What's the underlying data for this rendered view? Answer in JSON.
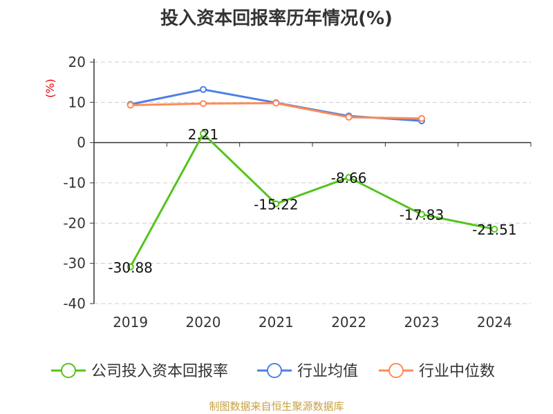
{
  "chart_data": {
    "type": "line",
    "title": "投入资本回报率历年情况(%)",
    "ylabel": "(%)",
    "xlabel": "",
    "categories": [
      "2019",
      "2020",
      "2021",
      "2022",
      "2023",
      "2024"
    ],
    "ylim": [
      -40,
      20
    ],
    "yticks": [
      20,
      10,
      0,
      -10,
      -20,
      -30,
      -40
    ],
    "grid": true,
    "legend_position": "bottom",
    "series": [
      {
        "name": "公司投入资本回报率",
        "color": "#52c41a",
        "values": [
          -30.88,
          2.21,
          -15.22,
          -8.66,
          -17.83,
          -21.51
        ],
        "labels": [
          "-30.88",
          "2.21",
          "-15.22",
          "-8.66",
          "-17.83",
          "-21.51"
        ]
      },
      {
        "name": "行业均值",
        "color": "#4e7fe6",
        "values": [
          9.5,
          13.2,
          9.9,
          6.6,
          5.4,
          null
        ]
      },
      {
        "name": "行业中位数",
        "color": "#ff8a55",
        "values": [
          9.3,
          9.7,
          9.8,
          6.3,
          6.0,
          null
        ]
      }
    ]
  },
  "source": "制图数据来自恒生聚源数据库"
}
